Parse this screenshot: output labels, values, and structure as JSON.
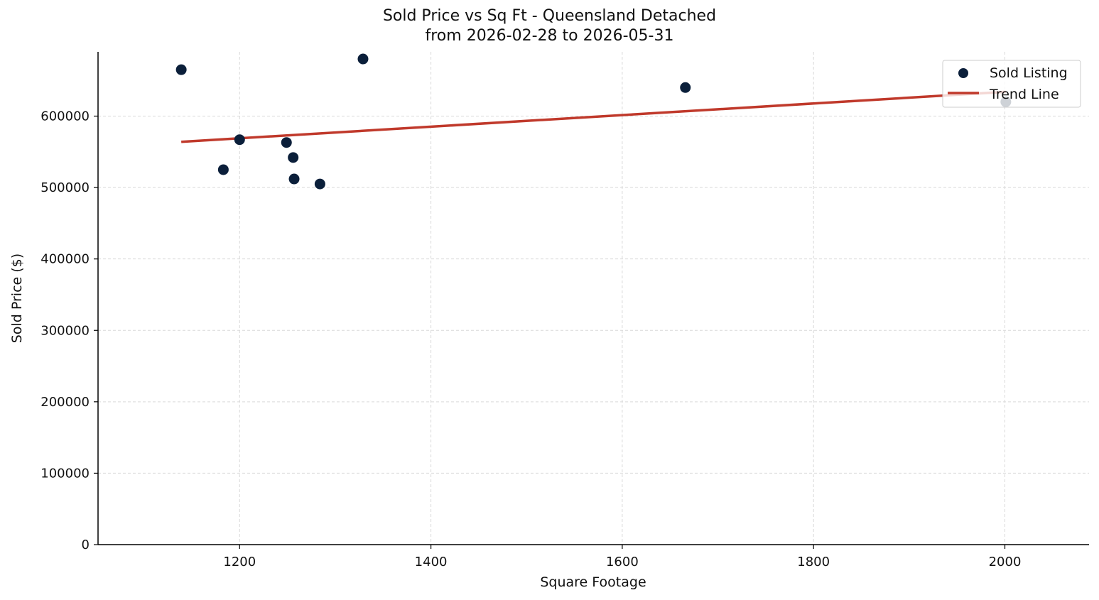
{
  "chart_data": {
    "type": "scatter",
    "title": "Sold Price vs Sq Ft - Queensland Detached",
    "subtitle": "from 2026-02-28 to 2026-05-31",
    "xlabel": "Square Footage",
    "ylabel": "Sold Price ($)",
    "xlim": [
      1052,
      2088
    ],
    "ylim": [
      0,
      690000
    ],
    "xticks": [
      1200,
      1400,
      1600,
      1800,
      2000
    ],
    "yticks": [
      0,
      100000,
      200000,
      300000,
      400000,
      500000,
      600000
    ],
    "grid": true,
    "legend_position": "top-right",
    "series": [
      {
        "name": "Sold Listing",
        "kind": "scatter",
        "color": "#0b1f3a",
        "points": [
          {
            "x": 1139,
            "y": 665000
          },
          {
            "x": 1183,
            "y": 525000
          },
          {
            "x": 1200,
            "y": 567000
          },
          {
            "x": 1249,
            "y": 563000
          },
          {
            "x": 1256,
            "y": 542000
          },
          {
            "x": 1257,
            "y": 512000
          },
          {
            "x": 1284,
            "y": 505000
          },
          {
            "x": 1329,
            "y": 680000
          },
          {
            "x": 1666,
            "y": 640000
          },
          {
            "x": 2001,
            "y": 620000
          }
        ]
      },
      {
        "name": "Trend Line",
        "kind": "line",
        "color": "#c0392b",
        "points": [
          {
            "x": 1139,
            "y": 564000
          },
          {
            "x": 2001,
            "y": 634000
          }
        ]
      }
    ]
  }
}
